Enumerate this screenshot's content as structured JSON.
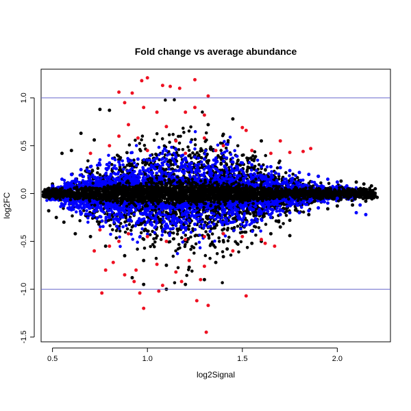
{
  "chart_data": {
    "type": "scatter",
    "title": "Fold change vs average abundance",
    "xlabel": "log2Signal",
    "ylabel": "log2FC",
    "xlim": [
      0.44,
      2.28
    ],
    "ylim": [
      -1.55,
      1.3
    ],
    "x_ticks": [
      0.5,
      1.0,
      1.5,
      2.0
    ],
    "x_tick_labels": [
      "0.5",
      "1.0",
      "1.5",
      "2.0"
    ],
    "y_ticks": [
      -1.5,
      -1.0,
      -0.5,
      0.0,
      0.5,
      1.0
    ],
    "y_tick_labels": [
      "-1.5",
      "-1.0",
      "-0.5",
      "0.0",
      "0.5",
      "1.0"
    ],
    "reference_lines": [
      {
        "axis": "y",
        "value": 1.0,
        "color": "#6666cc"
      },
      {
        "axis": "y",
        "value": -1.0,
        "color": "#6666cc"
      }
    ],
    "series": [
      {
        "color": "#000000",
        "points": [
          [
            0.75,
            0.88
          ],
          [
            0.8,
            0.87
          ],
          [
            1.45,
            0.78
          ],
          [
            1.32,
            0.72
          ],
          [
            0.65,
            0.63
          ],
          [
            1.4,
            0.62
          ],
          [
            0.72,
            0.56
          ],
          [
            1.6,
            0.55
          ],
          [
            0.55,
            0.42
          ],
          [
            0.6,
            0.45
          ],
          [
            1.9,
            0.18
          ],
          [
            2.02,
            0.13
          ],
          [
            2.1,
            0.12
          ],
          [
            2.14,
            0.1
          ],
          [
            2.18,
            0.08
          ],
          [
            2.2,
            0.05
          ],
          [
            2.21,
            -0.04
          ],
          [
            2.15,
            -0.08
          ],
          [
            2.08,
            -0.12
          ],
          [
            2.0,
            -0.13
          ],
          [
            1.95,
            -0.16
          ],
          [
            1.85,
            -0.22
          ],
          [
            1.75,
            -0.28
          ],
          [
            1.7,
            -0.35
          ],
          [
            1.65,
            -0.42
          ],
          [
            1.6,
            -0.5
          ],
          [
            1.55,
            -0.52
          ],
          [
            1.42,
            -0.58
          ],
          [
            1.4,
            -0.66
          ],
          [
            1.22,
            -0.77
          ],
          [
            1.1,
            -0.75
          ],
          [
            0.98,
            -0.7
          ],
          [
            0.88,
            -0.65
          ],
          [
            0.7,
            -0.45
          ],
          [
            0.62,
            -0.42
          ],
          [
            0.56,
            -0.3
          ],
          [
            0.52,
            -0.25
          ],
          [
            0.48,
            -0.18
          ],
          [
            0.46,
            0.02
          ],
          [
            0.5,
            0.1
          ],
          [
            0.98,
            -0.95
          ],
          [
            1.1,
            -1.0
          ],
          [
            1.2,
            -0.95
          ],
          [
            1.3,
            -0.9
          ],
          [
            0.92,
            -0.88
          ],
          [
            1.36,
            -0.72
          ],
          [
            1.75,
            -0.44
          ],
          [
            0.78,
            -0.55
          ]
        ]
      },
      {
        "color": "#0000ff",
        "points": [
          [
            0.5,
            0.08
          ],
          [
            0.55,
            0.15
          ],
          [
            0.6,
            0.2
          ],
          [
            0.65,
            0.25
          ],
          [
            0.7,
            0.28
          ],
          [
            0.75,
            0.3
          ],
          [
            0.8,
            0.32
          ],
          [
            0.85,
            0.33
          ],
          [
            0.9,
            0.34
          ],
          [
            0.95,
            0.36
          ],
          [
            1.0,
            0.35
          ],
          [
            1.05,
            0.37
          ],
          [
            1.1,
            0.36
          ],
          [
            1.15,
            0.38
          ],
          [
            1.2,
            0.37
          ],
          [
            1.25,
            0.38
          ],
          [
            1.3,
            0.36
          ],
          [
            1.35,
            0.35
          ],
          [
            1.4,
            0.34
          ],
          [
            1.45,
            0.33
          ],
          [
            1.5,
            0.32
          ],
          [
            1.55,
            0.3
          ],
          [
            1.6,
            0.28
          ],
          [
            1.65,
            0.28
          ],
          [
            1.7,
            0.27
          ],
          [
            1.75,
            0.24
          ],
          [
            1.8,
            0.22
          ],
          [
            1.85,
            0.2
          ],
          [
            1.9,
            0.18
          ],
          [
            1.95,
            0.15
          ],
          [
            2.0,
            0.12
          ],
          [
            2.05,
            0.08
          ],
          [
            2.0,
            -0.05
          ],
          [
            1.95,
            -0.1
          ],
          [
            1.9,
            -0.15
          ],
          [
            1.85,
            -0.18
          ],
          [
            1.8,
            -0.2
          ],
          [
            1.75,
            -0.2
          ],
          [
            1.7,
            -0.22
          ],
          [
            1.65,
            -0.25
          ],
          [
            1.6,
            -0.27
          ],
          [
            1.55,
            -0.28
          ],
          [
            1.5,
            -0.28
          ],
          [
            1.45,
            -0.3
          ],
          [
            1.4,
            -0.3
          ],
          [
            1.35,
            -0.32
          ],
          [
            1.3,
            -0.33
          ],
          [
            1.25,
            -0.32
          ],
          [
            1.2,
            -0.3
          ],
          [
            1.15,
            -0.31
          ],
          [
            1.1,
            -0.32
          ],
          [
            1.05,
            -0.3
          ],
          [
            1.0,
            -0.3
          ],
          [
            0.95,
            -0.29
          ],
          [
            0.9,
            -0.28
          ],
          [
            0.85,
            -0.27
          ],
          [
            0.8,
            -0.25
          ],
          [
            0.75,
            -0.24
          ],
          [
            0.7,
            -0.22
          ],
          [
            0.65,
            -0.2
          ],
          [
            0.6,
            -0.17
          ],
          [
            0.55,
            -0.12
          ],
          [
            0.5,
            -0.06
          ],
          [
            2.12,
            -0.12
          ],
          [
            2.1,
            -0.2
          ],
          [
            2.15,
            -0.22
          ]
        ]
      },
      {
        "color": "#ee1122",
        "points": [
          [
            1.0,
            1.21
          ],
          [
            0.97,
            1.18
          ],
          [
            1.25,
            1.19
          ],
          [
            0.85,
            1.06
          ],
          [
            0.92,
            1.05
          ],
          [
            1.08,
            1.13
          ],
          [
            1.12,
            1.12
          ],
          [
            1.17,
            1.1
          ],
          [
            1.05,
            0.85
          ],
          [
            0.98,
            0.9
          ],
          [
            1.2,
            0.85
          ],
          [
            0.88,
            0.95
          ],
          [
            1.32,
            1.02
          ],
          [
            1.25,
            0.9
          ],
          [
            1.3,
            0.82
          ],
          [
            0.9,
            0.72
          ],
          [
            1.1,
            0.7
          ],
          [
            1.5,
            0.69
          ],
          [
            1.52,
            0.66
          ],
          [
            1.7,
            0.55
          ],
          [
            1.3,
            0.58
          ],
          [
            0.95,
            0.58
          ],
          [
            0.85,
            0.6
          ],
          [
            1.15,
            0.55
          ],
          [
            1.4,
            0.5
          ],
          [
            1.55,
            0.45
          ],
          [
            1.65,
            0.42
          ],
          [
            1.75,
            0.43
          ],
          [
            1.82,
            0.44
          ],
          [
            1.86,
            0.47
          ],
          [
            0.8,
            0.5
          ],
          [
            0.7,
            0.42
          ],
          [
            1.0,
            0.45
          ],
          [
            1.2,
            0.42
          ],
          [
            1.36,
            0.45
          ],
          [
            0.75,
            -0.38
          ],
          [
            0.8,
            -0.55
          ],
          [
            0.85,
            -0.5
          ],
          [
            0.9,
            -0.42
          ],
          [
            1.0,
            -0.45
          ],
          [
            1.1,
            -0.5
          ],
          [
            1.2,
            -0.48
          ],
          [
            1.3,
            -0.45
          ],
          [
            1.4,
            -0.42
          ],
          [
            1.5,
            -0.45
          ],
          [
            1.6,
            -0.48
          ],
          [
            1.67,
            -0.55
          ],
          [
            0.72,
            -0.6
          ],
          [
            0.82,
            -0.72
          ],
          [
            0.94,
            -0.8
          ],
          [
            1.05,
            -0.74
          ],
          [
            1.15,
            -0.82
          ],
          [
            1.22,
            -0.7
          ],
          [
            1.3,
            -0.76
          ],
          [
            0.88,
            -0.85
          ],
          [
            0.93,
            -0.92
          ],
          [
            1.08,
            -0.96
          ],
          [
            1.18,
            -0.92
          ],
          [
            1.28,
            -0.9
          ],
          [
            0.76,
            -1.04
          ],
          [
            0.96,
            -1.04
          ],
          [
            1.06,
            -1.02
          ],
          [
            1.26,
            -1.12
          ],
          [
            1.32,
            -1.17
          ],
          [
            1.52,
            -1.07
          ],
          [
            1.31,
            -1.45
          ],
          [
            0.98,
            -1.2
          ],
          [
            1.45,
            -0.6
          ],
          [
            1.62,
            -0.52
          ],
          [
            0.78,
            -0.8
          ]
        ]
      }
    ],
    "background_density": {
      "note": "dense cloud along zero",
      "x_range": [
        0.45,
        2.2
      ]
    }
  }
}
